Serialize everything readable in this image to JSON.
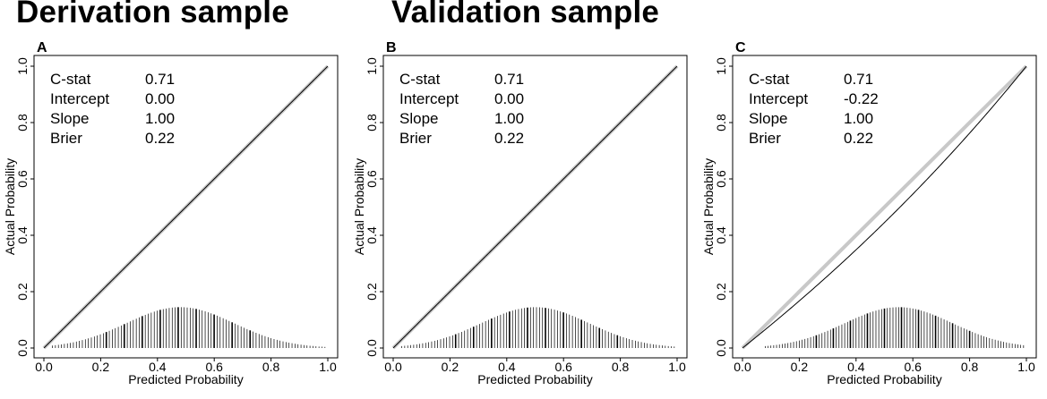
{
  "headings": {
    "derivation": "Derivation sample",
    "validation": "Validation sample"
  },
  "chart_data": [
    {
      "type": "calibration-plot",
      "panel": "A",
      "xlabel": "Predicted Probability",
      "ylabel": "Actual Probability",
      "xlim": [
        0,
        1
      ],
      "ylim": [
        0,
        1
      ],
      "x_ticks": [
        "0.0",
        "0.2",
        "0.4",
        "0.6",
        "0.8",
        "1.0"
      ],
      "y_ticks": [
        "0.0",
        "0.2",
        "0.4",
        "0.6",
        "0.8",
        "1.0"
      ],
      "stats": [
        {
          "label": "C-stat",
          "value": "0.71"
        },
        {
          "label": "Intercept",
          "value": "0.00"
        },
        {
          "label": "Slope",
          "value": "1.00"
        },
        {
          "label": "Brier",
          "value": "0.22"
        }
      ],
      "reference_line": {
        "from": [
          0,
          0
        ],
        "to": [
          1,
          1
        ]
      },
      "calibration_curve": {
        "intercept": 0.0,
        "slope": 1.0
      },
      "distribution": {
        "min": 0.03,
        "max": 0.99,
        "peak": 0.48,
        "spread": 0.19,
        "max_height": 0.145
      }
    },
    {
      "type": "calibration-plot",
      "panel": "B",
      "xlabel": "Predicted Probability",
      "ylabel": "Actual Probability",
      "xlim": [
        0,
        1
      ],
      "ylim": [
        0,
        1
      ],
      "x_ticks": [
        "0.0",
        "0.2",
        "0.4",
        "0.6",
        "0.8",
        "1.0"
      ],
      "y_ticks": [
        "0.0",
        "0.2",
        "0.4",
        "0.6",
        "0.8",
        "1.0"
      ],
      "stats": [
        {
          "label": "C-stat",
          "value": "0.71"
        },
        {
          "label": "Intercept",
          "value": "0.00"
        },
        {
          "label": "Slope",
          "value": "1.00"
        },
        {
          "label": "Brier",
          "value": "0.22"
        }
      ],
      "reference_line": {
        "from": [
          0,
          0
        ],
        "to": [
          1,
          1
        ]
      },
      "calibration_curve": {
        "intercept": 0.0,
        "slope": 1.0
      },
      "distribution": {
        "min": 0.03,
        "max": 0.99,
        "peak": 0.5,
        "spread": 0.19,
        "max_height": 0.145
      }
    },
    {
      "type": "calibration-plot",
      "panel": "C",
      "xlabel": "Predicted Probability",
      "ylabel": "Actual Probability",
      "xlim": [
        0,
        1
      ],
      "ylim": [
        0,
        1
      ],
      "x_ticks": [
        "0.0",
        "0.2",
        "0.4",
        "0.6",
        "0.8",
        "1.0"
      ],
      "y_ticks": [
        "0.0",
        "0.2",
        "0.4",
        "0.6",
        "0.8",
        "1.0"
      ],
      "stats": [
        {
          "label": "C-stat",
          "value": "0.71"
        },
        {
          "label": "Intercept",
          "value": "-0.22"
        },
        {
          "label": "Slope",
          "value": "1.00"
        },
        {
          "label": "Brier",
          "value": "0.22"
        }
      ],
      "reference_line": {
        "from": [
          0,
          0
        ],
        "to": [
          1,
          1
        ]
      },
      "calibration_curve": {
        "intercept": -0.22,
        "slope": 1.0
      },
      "distribution": {
        "min": 0.08,
        "max": 0.99,
        "peak": 0.55,
        "spread": 0.19,
        "max_height": 0.145
      }
    }
  ],
  "colors": {
    "reference_line": "#c8c8c8",
    "curve": "#000000",
    "bars": "#000000",
    "frame": "#000000"
  }
}
